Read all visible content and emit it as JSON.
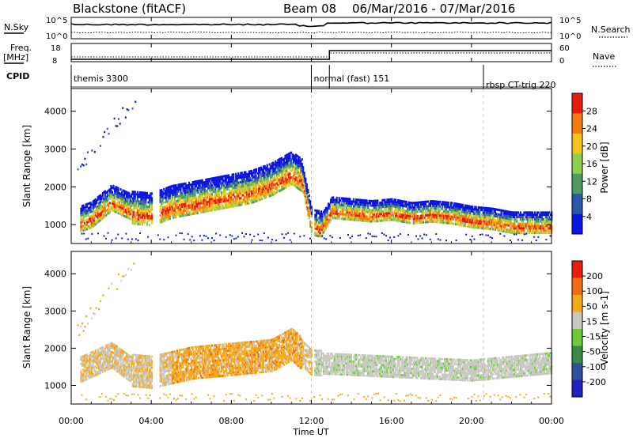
{
  "header": {
    "station": "Blackstone (fitACF)",
    "beam": "Beam 08",
    "dates": "06/Mar/2016 - 07/Mar/2016"
  },
  "side_labels": {
    "nsky": "N.Sky",
    "nsearch": "N.Search",
    "freq_line1": "Freq.",
    "freq_line2": "[MHz]",
    "nave": "Nave",
    "cpid": "CPID"
  },
  "noise_ticks": {
    "top": "10^5",
    "bottom": "10^0"
  },
  "freq_ticks": {
    "top": "18",
    "bottom": "8"
  },
  "nave_ticks": {
    "top": "60",
    "bottom": "0"
  },
  "cpid_segments": [
    {
      "label": "themis 3300",
      "start_hour": 0
    },
    {
      "label": "normal (fast) 151",
      "start_hour": 12
    },
    {
      "label": "rbsp CT-trig 220",
      "start_hour": 20.6
    }
  ],
  "colorbars": {
    "power": {
      "label": "Power [dB]",
      "ticks": [
        "28",
        "24",
        "20",
        "16",
        "12",
        "8",
        "4"
      ]
    },
    "velocity": {
      "label": "Velocity [m s-1]",
      "ticks": [
        "200",
        "100",
        "50",
        "15",
        "-15",
        "-50",
        "-100",
        "-200"
      ]
    }
  },
  "chart_data": [
    {
      "type": "heatmap",
      "name": "power",
      "ylabel": "Slant Range [km]",
      "y_ticks": [
        "1000",
        "2000",
        "3000",
        "4000"
      ],
      "ylim": [
        500,
        4600
      ],
      "xlim_hours": [
        0,
        24
      ],
      "legend": "right colorbar",
      "colors": [
        "#0a14e0",
        "#2b57a8",
        "#4f9a63",
        "#8fcf50",
        "#f5c31a",
        "#f57c0a",
        "#e51b0c"
      ],
      "main_echo_center_km": [
        [
          0.0,
          1050
        ],
        [
          1.0,
          1250
        ],
        [
          2.0,
          1700
        ],
        [
          3.0,
          1450
        ],
        [
          4.0,
          1400
        ],
        [
          5.0,
          1600
        ],
        [
          6.0,
          1700
        ],
        [
          7.0,
          1800
        ],
        [
          8.0,
          1900
        ],
        [
          9.0,
          2000
        ],
        [
          10.0,
          2200
        ],
        [
          11.0,
          2500
        ],
        [
          11.5,
          2300
        ],
        [
          12.0,
          1050
        ],
        [
          12.5,
          1000
        ],
        [
          13.0,
          1450
        ],
        [
          14.0,
          1400
        ],
        [
          15.0,
          1350
        ],
        [
          16.0,
          1400
        ],
        [
          17.0,
          1300
        ],
        [
          18.0,
          1350
        ],
        [
          19.0,
          1300
        ],
        [
          20.0,
          1200
        ],
        [
          21.0,
          1150
        ],
        [
          22.0,
          1050
        ],
        [
          23.0,
          1050
        ],
        [
          24.0,
          1050
        ]
      ]
    },
    {
      "type": "heatmap",
      "name": "velocity",
      "ylabel": "Slant Range [km]",
      "y_ticks": [
        "1000",
        "2000",
        "3000",
        "4000"
      ],
      "ylim": [
        500,
        4600
      ],
      "xlim_hours": [
        0,
        24
      ],
      "legend": "right colorbar",
      "colors": [
        "#2020c0",
        "#3050a0",
        "#3a8c45",
        "#6ccc3c",
        "#c8c8c0",
        "#f5a81a",
        "#f07010",
        "#e52010"
      ],
      "main_echo_center_km": [
        [
          0.0,
          1300
        ],
        [
          2.0,
          1800
        ],
        [
          3.0,
          1400
        ],
        [
          4.0,
          1350
        ],
        [
          6.0,
          1600
        ],
        [
          8.0,
          1700
        ],
        [
          10.0,
          1800
        ],
        [
          11.0,
          2100
        ],
        [
          12.0,
          1600
        ],
        [
          14.0,
          1550
        ],
        [
          16.0,
          1500
        ],
        [
          18.0,
          1450
        ],
        [
          20.0,
          1400
        ],
        [
          22.0,
          1500
        ],
        [
          24.0,
          1600
        ]
      ]
    }
  ],
  "x_axis": {
    "label": "Time UT",
    "ticks": [
      "00:00",
      "04:00",
      "08:00",
      "12:00",
      "16:00",
      "20:00",
      "00:00"
    ]
  }
}
